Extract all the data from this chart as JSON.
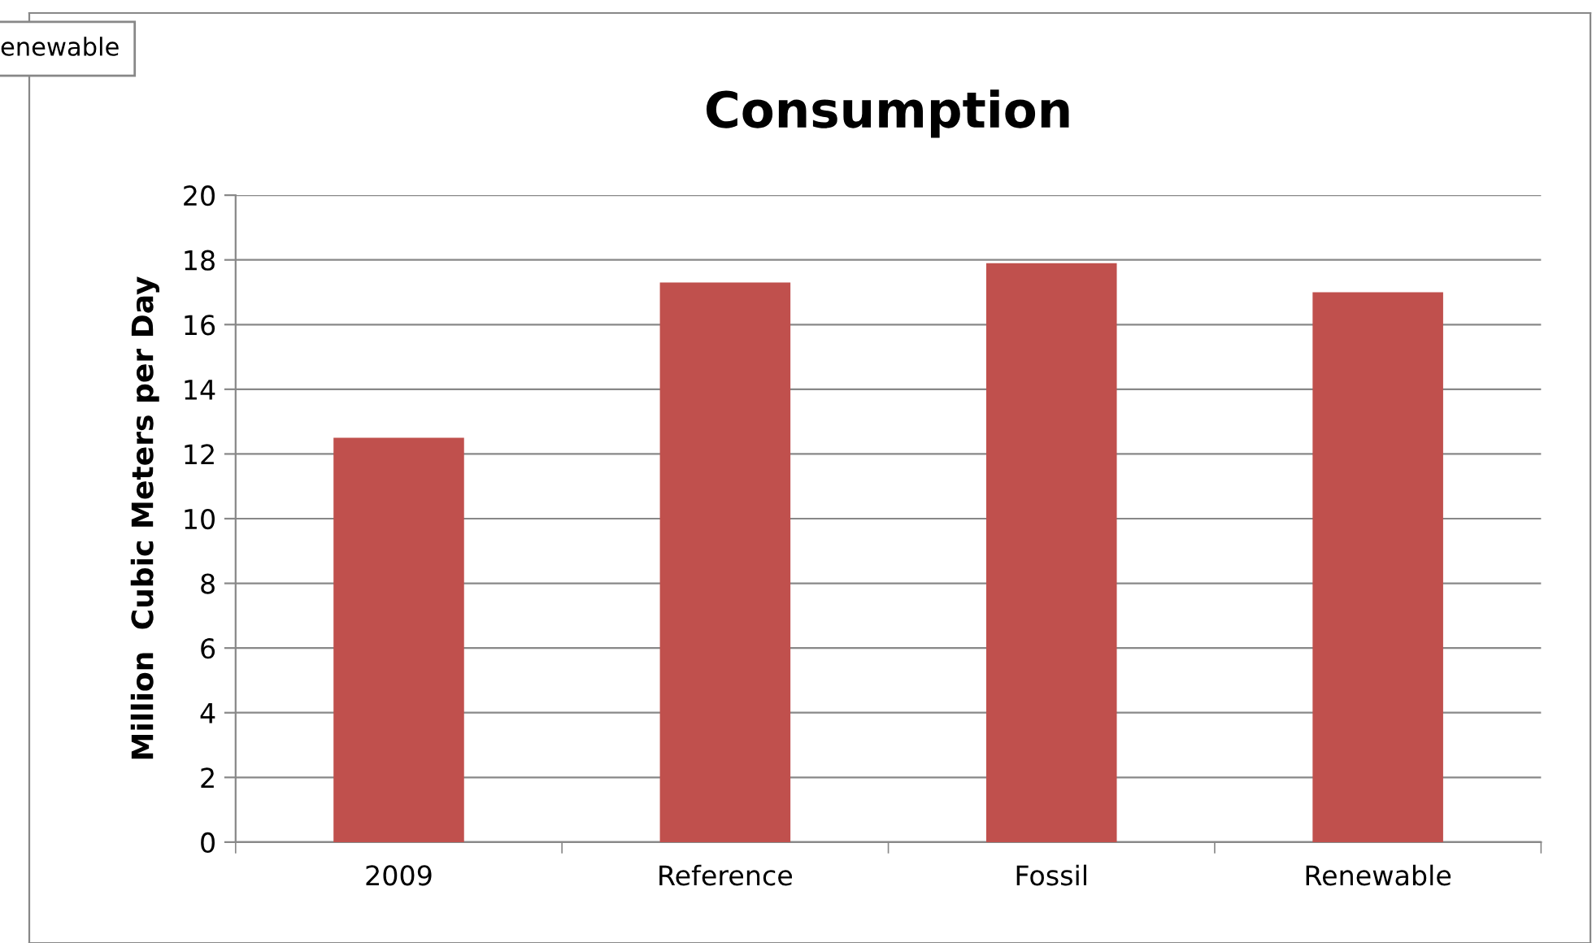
{
  "chart_data": {
    "type": "bar",
    "title": "Consumption",
    "ylabel": "Million  Cubic Meters per Day",
    "categories": [
      "2009",
      "Reference",
      "Fossil",
      "Renewable"
    ],
    "values": [
      12.5,
      17.3,
      17.9,
      17.0
    ],
    "color": "#c0504d",
    "ylim": [
      0,
      20
    ],
    "yticks": [
      0,
      2,
      4,
      6,
      8,
      10,
      12,
      14,
      16,
      18,
      20
    ],
    "grid": "y",
    "annotations": [
      "enewable"
    ]
  }
}
